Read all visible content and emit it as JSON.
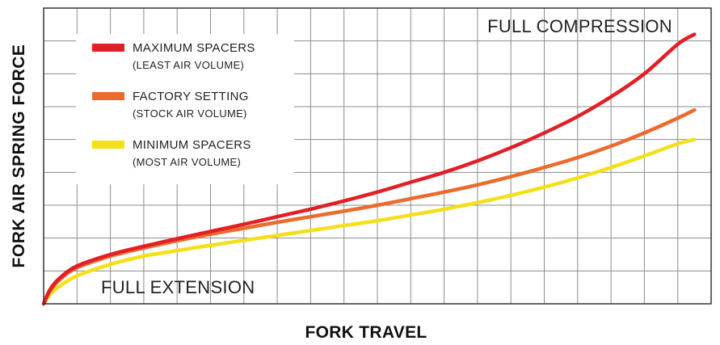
{
  "chart_data": {
    "type": "line",
    "xlabel": "FORK TRAVEL",
    "ylabel": "FORK AIR SPRING FORCE",
    "xlim": [
      0,
      20
    ],
    "ylim": [
      0,
      9
    ],
    "grid": true,
    "legend_position": "top-left",
    "annotations": [
      {
        "text": "FULL COMPRESSION",
        "position": "top-right"
      },
      {
        "text": "FULL EXTENSION",
        "position": "bottom-left"
      }
    ],
    "series": [
      {
        "name": "MAXIMUM SPACERS",
        "subtitle": "(LEAST AIR VOLUME)",
        "color": "#e21f26",
        "x": [
          0,
          0.2,
          0.5,
          1,
          2,
          3,
          4,
          5,
          6,
          7,
          8,
          9,
          10,
          11,
          12,
          13,
          14,
          15,
          16,
          17,
          18,
          19,
          19.5
        ],
        "y": [
          0,
          0.45,
          0.8,
          1.15,
          1.5,
          1.75,
          1.98,
          2.2,
          2.42,
          2.65,
          2.88,
          3.13,
          3.4,
          3.7,
          4.0,
          4.35,
          4.75,
          5.2,
          5.7,
          6.3,
          7.0,
          7.9,
          8.2
        ]
      },
      {
        "name": "FACTORY SETTING",
        "subtitle": "(STOCK AIR VOLUME)",
        "color": "#ec6a2c",
        "x": [
          0,
          0.2,
          0.5,
          1,
          2,
          3,
          4,
          5,
          6,
          7,
          8,
          9,
          10,
          11,
          12,
          13,
          14,
          15,
          16,
          17,
          18,
          19,
          19.5
        ],
        "y": [
          0,
          0.4,
          0.75,
          1.1,
          1.45,
          1.7,
          1.92,
          2.12,
          2.3,
          2.48,
          2.65,
          2.82,
          3.0,
          3.2,
          3.4,
          3.62,
          3.87,
          4.15,
          4.45,
          4.8,
          5.2,
          5.65,
          5.9
        ]
      },
      {
        "name": "MINIMUM SPACERS",
        "subtitle": "(MOST AIR VOLUME)",
        "color": "#f3e019",
        "x": [
          0,
          0.2,
          0.5,
          1,
          2,
          3,
          4,
          5,
          6,
          7,
          8,
          9,
          10,
          11,
          12,
          13,
          14,
          15,
          16,
          17,
          18,
          19,
          19.5
        ],
        "y": [
          0,
          0.3,
          0.55,
          0.85,
          1.2,
          1.45,
          1.62,
          1.78,
          1.93,
          2.08,
          2.23,
          2.38,
          2.53,
          2.7,
          2.88,
          3.08,
          3.3,
          3.55,
          3.83,
          4.15,
          4.5,
          4.87,
          5.0
        ]
      }
    ]
  }
}
